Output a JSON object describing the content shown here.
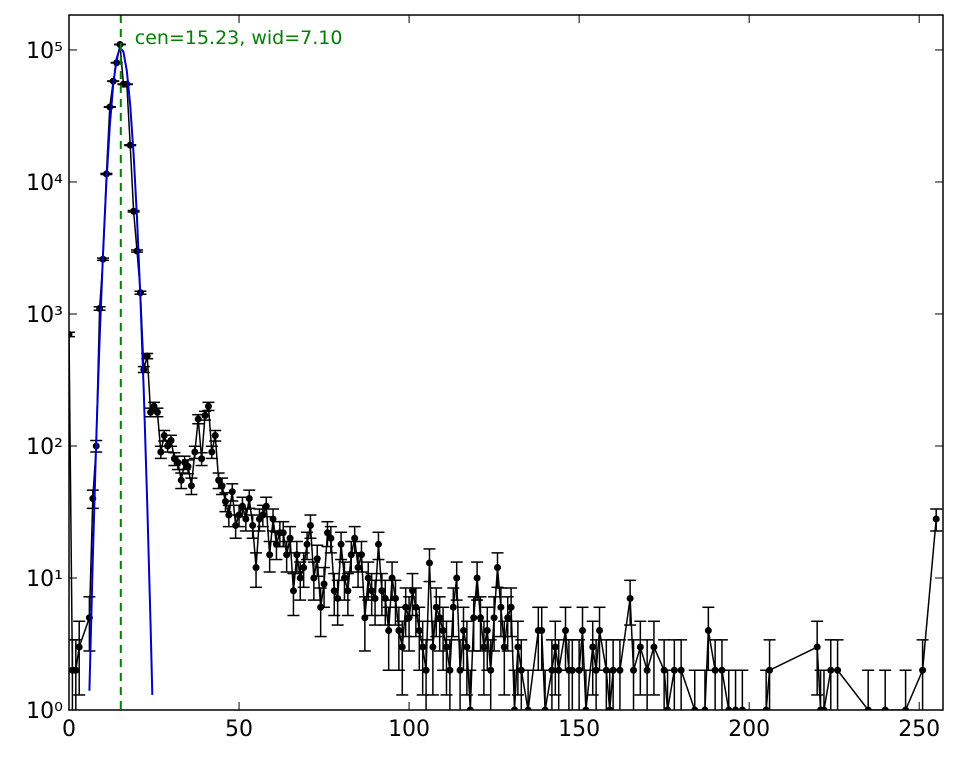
{
  "chart_data": {
    "type": "errorbar",
    "log_y": true,
    "annotation": "cen=15.23, wid=7.10",
    "annotation_color": "#008000",
    "vline": {
      "x": 15.23,
      "color": "#008000"
    },
    "xlim": [
      0,
      257
    ],
    "xticks": [
      0,
      50,
      100,
      150,
      200,
      250
    ],
    "ylim": [
      1,
      184000
    ],
    "yticks": [
      {
        "value": 1,
        "label": "10⁰"
      },
      {
        "value": 10,
        "label": "10¹"
      },
      {
        "value": 100,
        "label": "10²"
      },
      {
        "value": 1000,
        "label": "10³"
      },
      {
        "value": 10000,
        "label": "10⁴"
      },
      {
        "value": 100000,
        "label": "10⁵"
      }
    ],
    "series": [
      {
        "kind": "errorbar",
        "color": "#000000",
        "x": [
          0,
          1,
          2,
          3,
          6,
          7,
          8,
          9,
          10,
          11,
          12,
          13,
          14,
          15,
          16,
          17,
          18,
          19,
          20,
          21,
          22,
          23,
          24,
          25,
          26,
          27,
          28,
          29,
          30,
          31,
          32,
          33,
          34,
          35,
          36,
          37,
          38,
          39,
          40,
          41,
          42,
          43,
          44,
          45,
          46,
          47,
          48,
          49,
          50,
          51,
          52,
          53,
          54,
          55,
          56,
          57,
          58,
          59,
          60,
          61,
          62,
          63,
          64,
          65,
          66,
          67,
          68,
          69,
          70,
          71,
          72,
          73,
          74,
          75,
          76,
          77,
          78,
          79,
          80,
          81,
          82,
          83,
          84,
          85,
          86,
          87,
          88,
          89,
          90,
          91,
          92,
          93,
          94,
          95,
          96,
          97,
          98,
          99,
          100,
          101,
          102,
          103,
          104,
          105,
          106,
          107,
          108,
          109,
          110,
          111,
          112,
          113,
          114,
          115,
          116,
          117,
          118,
          119,
          120,
          121,
          122,
          123,
          124,
          125,
          126,
          127,
          128,
          129,
          130,
          131,
          132,
          133,
          135,
          138,
          139,
          140,
          142,
          143,
          144,
          146,
          147,
          148,
          150,
          151,
          152,
          154,
          155,
          156,
          158,
          159,
          160,
          162,
          165,
          166,
          168,
          170,
          172,
          175,
          176,
          178,
          180,
          184,
          187,
          188,
          190,
          192,
          194,
          196,
          198,
          205,
          206,
          220,
          221,
          222,
          224,
          226,
          235,
          240,
          246,
          251,
          255
        ],
        "values": [
          700,
          2,
          2,
          3,
          5,
          40,
          100,
          1100,
          2600,
          11500,
          37000,
          58000,
          80000,
          110000,
          55000,
          55000,
          19000,
          6000,
          3000,
          1450,
          380,
          480,
          180,
          200,
          180,
          90,
          120,
          100,
          110,
          80,
          75,
          55,
          75,
          70,
          50,
          90,
          160,
          80,
          170,
          200,
          90,
          120,
          55,
          50,
          38,
          30,
          45,
          25,
          30,
          35,
          28,
          40,
          25,
          12,
          28,
          30,
          35,
          15,
          28,
          18,
          22,
          22,
          15,
          20,
          8,
          15,
          10,
          12,
          18,
          25,
          10,
          14,
          6,
          9,
          22,
          20,
          8,
          7,
          18,
          10,
          8,
          15,
          20,
          12,
          15,
          5,
          10,
          8,
          7,
          18,
          8,
          7,
          4,
          10,
          7,
          4,
          3,
          6,
          5,
          8,
          6,
          4,
          3,
          2,
          13,
          3,
          6,
          5,
          4,
          3,
          2,
          6,
          10,
          2,
          4,
          3,
          1,
          5,
          10,
          5,
          3,
          4,
          2,
          5,
          12,
          6,
          3,
          5,
          6,
          1,
          3,
          2,
          1,
          4,
          4,
          1,
          2,
          3,
          2,
          4,
          2,
          2,
          2,
          4,
          1,
          3,
          2,
          4,
          2,
          1,
          2,
          2,
          7,
          2,
          3,
          2,
          3,
          2,
          1,
          2,
          2,
          1,
          1,
          4,
          2,
          2,
          1,
          1,
          1,
          1,
          2,
          3,
          1,
          1,
          2,
          2,
          1,
          1,
          1,
          2,
          28
        ],
        "errors": [
          26.5,
          1.4,
          1.4,
          1.7,
          2.2,
          6.3,
          10,
          33,
          51,
          107,
          192,
          241,
          283,
          332,
          235,
          235,
          138,
          77,
          55,
          38,
          19.5,
          21.9,
          13.4,
          14.1,
          13.4,
          9.5,
          11,
          10,
          10.5,
          8.9,
          8.7,
          7.4,
          8.7,
          8.4,
          7.1,
          9.5,
          12.6,
          8.9,
          13,
          14.1,
          9.5,
          11,
          7.4,
          7.1,
          6.2,
          5.5,
          6.7,
          5,
          5.5,
          5.9,
          5.3,
          6.3,
          5,
          3.5,
          5.3,
          5.5,
          5.9,
          3.9,
          5.3,
          4.2,
          4.7,
          4.7,
          3.9,
          4.5,
          2.8,
          3.9,
          3.2,
          3.5,
          4.2,
          5,
          3.2,
          3.7,
          2.4,
          3,
          4.7,
          4.5,
          2.8,
          2.6,
          4.2,
          3.2,
          2.8,
          3.9,
          4.5,
          3.5,
          3.9,
          2.2,
          3.2,
          2.8,
          2.6,
          4.2,
          2.8,
          2.6,
          2,
          3.2,
          2.6,
          2,
          1.7,
          2.4,
          2.2,
          2.8,
          2.4,
          2,
          1.7,
          1.4,
          3.6,
          1.7,
          2.4,
          2.2,
          2,
          1.7,
          1.4,
          2.4,
          3.2,
          1.4,
          2,
          1.7,
          1,
          2.2,
          3.2,
          2.2,
          1.7,
          2,
          1.4,
          2.2,
          3.5,
          2.4,
          1.7,
          2.2,
          2.4,
          1,
          1.7,
          1.4,
          1,
          2,
          2,
          1,
          1.4,
          1.7,
          1.4,
          2,
          1.4,
          1.4,
          1.4,
          2,
          1,
          1.7,
          1.4,
          2,
          1.4,
          1,
          1.4,
          1.4,
          2.6,
          1.4,
          1.7,
          1.4,
          1.7,
          1.4,
          1,
          1.4,
          1.4,
          1,
          1,
          2,
          1.4,
          1.4,
          1,
          1,
          1,
          1,
          1.4,
          1.7,
          1,
          1,
          1.4,
          1.4,
          1,
          1,
          1,
          1.4,
          5.3
        ]
      },
      {
        "kind": "line",
        "color": "#0000cc",
        "x": [
          6,
          7,
          8,
          9,
          10,
          11,
          12,
          13,
          14,
          15,
          16,
          17,
          18,
          19,
          20,
          21,
          22,
          23,
          24,
          24.5
        ],
        "values": [
          1.4,
          14,
          109,
          640,
          2870,
          10000,
          26700,
          54600,
          86000,
          104000,
          97000,
          69600,
          38300,
          16200,
          5300,
          1310,
          252,
          37,
          4.3,
          1.3
        ]
      }
    ]
  }
}
